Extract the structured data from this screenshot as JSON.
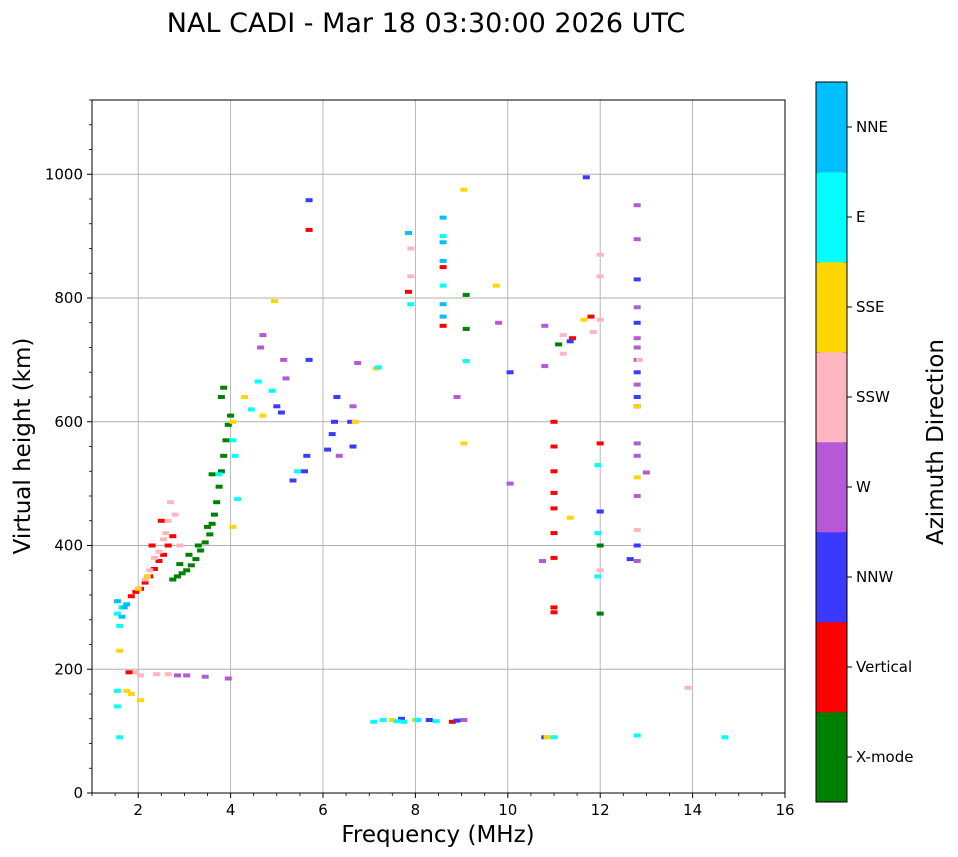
{
  "chart_data": {
    "type": "scatter",
    "title": "NAL CADI - Mar 18 03:30:00 2026 UTC",
    "xlabel": "Frequency (MHz)",
    "ylabel": "Virtual height (km)",
    "xlim": [
      1,
      16
    ],
    "ylim": [
      0,
      1120
    ],
    "xticks": [
      2,
      4,
      6,
      8,
      10,
      12,
      14,
      16
    ],
    "yticks": [
      0,
      200,
      400,
      600,
      800,
      1000
    ],
    "grid": true,
    "colorbar": {
      "label": "Azimuth Direction",
      "categories": [
        {
          "name": "X-mode",
          "color": "#008000"
        },
        {
          "name": "Vertical",
          "color": "#ff0000"
        },
        {
          "name": "NNW",
          "color": "#3a3aff"
        },
        {
          "name": "W",
          "color": "#b659d6"
        },
        {
          "name": "SSW",
          "color": "#ffb6c1"
        },
        {
          "name": "SSE",
          "color": "#ffd700"
        },
        {
          "name": "E",
          "color": "#00ffff"
        },
        {
          "name": "NNE",
          "color": "#00bfff"
        }
      ]
    },
    "series": [
      {
        "name": "X-mode",
        "points": [
          [
            2.75,
            345
          ],
          [
            2.85,
            350
          ],
          [
            2.95,
            355
          ],
          [
            3.05,
            360
          ],
          [
            3.15,
            368
          ],
          [
            3.25,
            378
          ],
          [
            3.35,
            392
          ],
          [
            3.45,
            405
          ],
          [
            3.55,
            418
          ],
          [
            3.6,
            435
          ],
          [
            3.65,
            450
          ],
          [
            3.7,
            470
          ],
          [
            3.75,
            495
          ],
          [
            3.8,
            520
          ],
          [
            3.85,
            545
          ],
          [
            3.9,
            570
          ],
          [
            3.95,
            595
          ],
          [
            4.0,
            610
          ],
          [
            3.8,
            640
          ],
          [
            3.85,
            655
          ],
          [
            2.9,
            370
          ],
          [
            3.1,
            385
          ],
          [
            3.3,
            400
          ],
          [
            3.5,
            430
          ],
          [
            12.0,
            290
          ],
          [
            12.0,
            400
          ],
          [
            12.0,
            455
          ],
          [
            9.1,
            805
          ],
          [
            9.1,
            750
          ],
          [
            11.1,
            725
          ],
          [
            3.6,
            515
          ]
        ]
      },
      {
        "name": "Vertical",
        "points": [
          [
            1.85,
            318
          ],
          [
            1.95,
            325
          ],
          [
            2.05,
            330
          ],
          [
            2.15,
            340
          ],
          [
            2.25,
            350
          ],
          [
            2.35,
            362
          ],
          [
            2.45,
            375
          ],
          [
            2.55,
            385
          ],
          [
            2.65,
            400
          ],
          [
            2.75,
            415
          ],
          [
            2.3,
            400
          ],
          [
            2.5,
            440
          ],
          [
            1.8,
            195
          ],
          [
            11.0,
            300
          ],
          [
            11.0,
            292
          ],
          [
            11.0,
            520
          ],
          [
            11.0,
            560
          ],
          [
            11.0,
            600
          ],
          [
            11.0,
            420
          ],
          [
            11.0,
            380
          ],
          [
            11.0,
            460
          ],
          [
            11.0,
            485
          ],
          [
            8.6,
            755
          ],
          [
            8.6,
            850
          ],
          [
            12.0,
            565
          ],
          [
            11.8,
            770
          ],
          [
            11.4,
            735
          ],
          [
            5.7,
            910
          ],
          [
            7.85,
            810
          ],
          [
            8.8,
            115
          ]
        ]
      },
      {
        "name": "NNW",
        "points": [
          [
            5.35,
            505
          ],
          [
            5.6,
            520
          ],
          [
            5.65,
            545
          ],
          [
            6.1,
            555
          ],
          [
            6.2,
            580
          ],
          [
            6.25,
            600
          ],
          [
            6.3,
            640
          ],
          [
            6.65,
            560
          ],
          [
            6.6,
            600
          ],
          [
            5.7,
            700
          ],
          [
            5.1,
            615
          ],
          [
            5.0,
            625
          ],
          [
            5.7,
            958
          ],
          [
            10.05,
            680
          ],
          [
            11.7,
            995
          ],
          [
            12.8,
            680
          ],
          [
            12.8,
            830
          ],
          [
            12.8,
            760
          ],
          [
            12.8,
            640
          ],
          [
            12.8,
            625
          ],
          [
            12.8,
            400
          ],
          [
            12.65,
            378
          ],
          [
            7.7,
            120
          ],
          [
            8.3,
            118
          ],
          [
            8.9,
            117
          ],
          [
            12.0,
            455
          ],
          [
            11.35,
            730
          ],
          [
            10.8,
            90
          ]
        ]
      },
      {
        "name": "W",
        "points": [
          [
            12.8,
            950
          ],
          [
            12.8,
            895
          ],
          [
            12.8,
            785
          ],
          [
            12.8,
            735
          ],
          [
            12.8,
            720
          ],
          [
            12.8,
            700
          ],
          [
            12.8,
            660
          ],
          [
            12.8,
            565
          ],
          [
            12.8,
            545
          ],
          [
            12.8,
            480
          ],
          [
            12.8,
            375
          ],
          [
            13.0,
            518
          ],
          [
            6.75,
            695
          ],
          [
            6.65,
            625
          ],
          [
            5.2,
            670
          ],
          [
            5.15,
            700
          ],
          [
            4.7,
            740
          ],
          [
            4.65,
            720
          ],
          [
            10.8,
            755
          ],
          [
            10.8,
            690
          ],
          [
            10.75,
            375
          ],
          [
            10.05,
            500
          ],
          [
            9.05,
            118
          ],
          [
            2.85,
            190
          ],
          [
            3.05,
            190
          ],
          [
            3.45,
            188
          ],
          [
            3.95,
            185
          ],
          [
            9.8,
            760
          ],
          [
            8.9,
            640
          ],
          [
            6.35,
            545
          ]
        ]
      },
      {
        "name": "SSW",
        "points": [
          [
            2.45,
            390
          ],
          [
            2.55,
            410
          ],
          [
            2.65,
            440
          ],
          [
            2.7,
            470
          ],
          [
            2.8,
            450
          ],
          [
            2.6,
            420
          ],
          [
            2.35,
            380
          ],
          [
            2.25,
            360
          ],
          [
            2.15,
            345
          ],
          [
            2.9,
            400
          ],
          [
            1.95,
            195
          ],
          [
            2.05,
            190
          ],
          [
            2.4,
            192
          ],
          [
            2.65,
            192
          ],
          [
            11.2,
            740
          ],
          [
            11.2,
            710
          ],
          [
            11.85,
            745
          ],
          [
            12.0,
            870
          ],
          [
            12.0,
            835
          ],
          [
            12.0,
            765
          ],
          [
            12.0,
            360
          ],
          [
            12.8,
            425
          ],
          [
            12.85,
            700
          ],
          [
            13.9,
            170
          ],
          [
            7.9,
            835
          ],
          [
            7.9,
            880
          ]
        ]
      },
      {
        "name": "SSE",
        "points": [
          [
            1.6,
            230
          ],
          [
            1.75,
            165
          ],
          [
            1.85,
            160
          ],
          [
            2.05,
            150
          ],
          [
            2.0,
            330
          ],
          [
            2.2,
            350
          ],
          [
            4.05,
            430
          ],
          [
            4.05,
            600
          ],
          [
            4.3,
            640
          ],
          [
            4.7,
            610
          ],
          [
            4.95,
            795
          ],
          [
            9.05,
            975
          ],
          [
            9.05,
            565
          ],
          [
            9.75,
            820
          ],
          [
            11.35,
            445
          ],
          [
            11.65,
            765
          ],
          [
            12.8,
            510
          ],
          [
            12.8,
            625
          ],
          [
            10.85,
            90
          ],
          [
            7.15,
            686
          ],
          [
            6.7,
            600
          ],
          [
            7.5,
            118
          ],
          [
            8.0,
            118
          ]
        ]
      },
      {
        "name": "E",
        "points": [
          [
            1.55,
            290
          ],
          [
            1.6,
            270
          ],
          [
            1.65,
            300
          ],
          [
            1.55,
            165
          ],
          [
            1.55,
            140
          ],
          [
            1.6,
            90
          ],
          [
            3.75,
            515
          ],
          [
            4.05,
            570
          ],
          [
            4.1,
            545
          ],
          [
            4.15,
            475
          ],
          [
            4.45,
            620
          ],
          [
            4.6,
            665
          ],
          [
            4.9,
            650
          ],
          [
            5.45,
            520
          ],
          [
            7.2,
            688
          ],
          [
            7.1,
            115
          ],
          [
            7.3,
            118
          ],
          [
            7.6,
            116
          ],
          [
            7.75,
            115
          ],
          [
            8.05,
            118
          ],
          [
            8.45,
            116
          ],
          [
            8.6,
            900
          ],
          [
            8.6,
            820
          ],
          [
            9.1,
            698
          ],
          [
            11.95,
            530
          ],
          [
            11.95,
            420
          ],
          [
            11.95,
            350
          ],
          [
            12.8,
            93
          ],
          [
            14.7,
            90
          ],
          [
            7.9,
            790
          ],
          [
            11.0,
            90
          ]
        ]
      },
      {
        "name": "NNE",
        "points": [
          [
            1.55,
            310
          ],
          [
            1.65,
            285
          ],
          [
            1.7,
            300
          ],
          [
            1.75,
            305
          ],
          [
            8.6,
            930
          ],
          [
            8.6,
            890
          ],
          [
            8.6,
            860
          ],
          [
            8.6,
            790
          ],
          [
            8.6,
            770
          ],
          [
            7.85,
            905
          ]
        ]
      }
    ]
  }
}
